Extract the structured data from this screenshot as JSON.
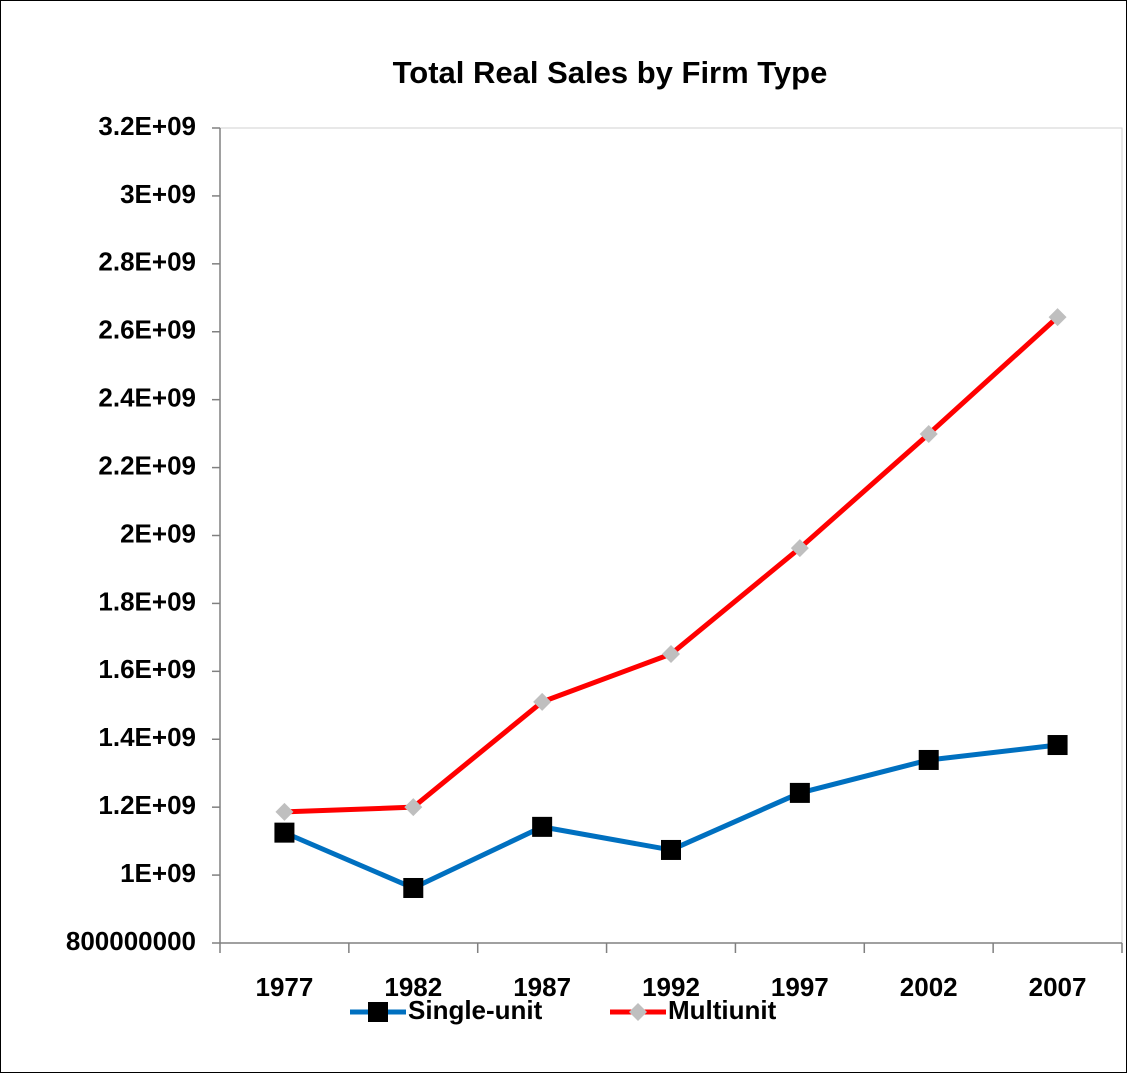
{
  "chart_data": {
    "type": "line",
    "title": "Total Real Sales by Firm Type",
    "categories": [
      "1977",
      "1982",
      "1987",
      "1992",
      "1997",
      "2002",
      "2007"
    ],
    "series": [
      {
        "name": "Single-unit",
        "color": "#0070c0",
        "marker": "square",
        "marker_color": "#000000",
        "values": [
          1125000000,
          962000000,
          1142000000,
          1074000000,
          1242000000,
          1339000000,
          1383000000
        ]
      },
      {
        "name": "Multiunit",
        "color": "#ff0000",
        "marker": "diamond",
        "marker_color": "#bfbfbf",
        "values": [
          1186000000,
          1200000000,
          1510000000,
          1651000000,
          1963000000,
          2299000000,
          2643000000
        ]
      }
    ],
    "ylim": [
      800000000,
      3200000000
    ],
    "yticks": [
      800000000,
      {
        "value": 1000000000,
        "label": "1E+09"
      },
      {
        "value": 1200000000,
        "label": "1.2E+09"
      },
      {
        "value": 1400000000,
        "label": "1.4E+09"
      },
      {
        "value": 1600000000,
        "label": "1.6E+09"
      },
      {
        "value": 1800000000,
        "label": "1.8E+09"
      },
      {
        "value": 2000000000,
        "label": "2E+09"
      },
      {
        "value": 2200000000,
        "label": "2.2E+09"
      },
      {
        "value": 2400000000,
        "label": "2.4E+09"
      },
      {
        "value": 2600000000,
        "label": "2.6E+09"
      },
      {
        "value": 2800000000,
        "label": "2.8E+09"
      },
      {
        "value": 3000000000,
        "label": "3E+09"
      },
      {
        "value": 3200000000,
        "label": "3.2E+09"
      }
    ],
    "grid": false,
    "legend": "bottom"
  }
}
